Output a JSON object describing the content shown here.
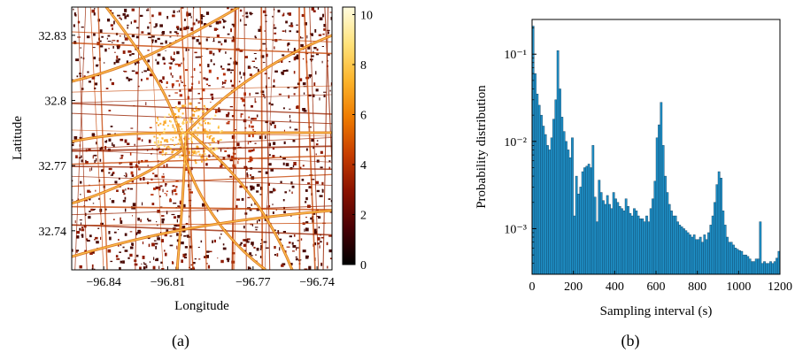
{
  "chart_data": [
    {
      "panel": "(a)",
      "type": "heatmap",
      "xlabel": "Longitude",
      "ylabel": "Latitude",
      "x_ticks": [
        -96.84,
        -96.81,
        -96.77,
        -96.74
      ],
      "x_tick_labels": [
        "−96.84",
        "−96.81",
        "−96.77",
        "−96.74"
      ],
      "y_ticks": [
        32.83,
        32.8,
        32.77,
        32.74
      ],
      "y_tick_labels": [
        "32.83",
        "32.8",
        "32.77",
        "32.74"
      ],
      "xlim": [
        -96.855,
        -96.733
      ],
      "ylim": [
        32.722,
        32.843
      ],
      "colorbar": {
        "range": [
          0,
          10.3
        ],
        "ticks": [
          0,
          2,
          4,
          6,
          8,
          10
        ],
        "tick_labels": [
          "0",
          "2",
          "4",
          "6",
          "8",
          "10"
        ],
        "colors": [
          "#000000",
          "#4a0004",
          "#8a1200",
          "#c73e00",
          "#ee7b00",
          "#fcb42b",
          "#ffe27a",
          "#fffcdf"
        ]
      }
    },
    {
      "panel": "(b)",
      "type": "bar",
      "xlabel": "Sampling interval (s)",
      "ylabel": "Probability distribution",
      "y_scale": "log",
      "xlim": [
        0,
        1200
      ],
      "ylim": [
        0.0003,
        0.25
      ],
      "x_ticks": [
        0,
        200,
        400,
        600,
        800,
        1000,
        1200
      ],
      "x_tick_labels": [
        "0",
        "200",
        "400",
        "600",
        "800",
        "1000",
        "1200"
      ],
      "y_ticks": [
        0.001,
        0.01,
        0.1
      ],
      "y_tick_labels": [
        "10⁻³",
        "10⁻²",
        "10⁻¹"
      ],
      "bin_width": 10,
      "bar_color": "#1f8fc6",
      "bins_start": [
        0,
        10,
        20,
        30,
        40,
        50,
        60,
        70,
        80,
        90,
        100,
        110,
        120,
        130,
        140,
        150,
        160,
        170,
        180,
        190,
        200,
        210,
        220,
        230,
        240,
        250,
        260,
        270,
        280,
        290,
        300,
        310,
        320,
        330,
        340,
        350,
        360,
        370,
        380,
        390,
        400,
        410,
        420,
        430,
        440,
        450,
        460,
        470,
        480,
        490,
        500,
        510,
        520,
        530,
        540,
        550,
        560,
        570,
        580,
        590,
        600,
        610,
        620,
        630,
        640,
        650,
        660,
        670,
        680,
        690,
        700,
        710,
        720,
        730,
        740,
        750,
        760,
        770,
        780,
        790,
        800,
        810,
        820,
        830,
        840,
        850,
        860,
        870,
        880,
        890,
        900,
        910,
        920,
        930,
        940,
        950,
        960,
        970,
        980,
        990,
        1000,
        1010,
        1020,
        1030,
        1040,
        1050,
        1060,
        1070,
        1080,
        1090,
        1100,
        1110,
        1120,
        1130,
        1140,
        1150,
        1160,
        1170,
        1180,
        1190
      ],
      "values": [
        0.21,
        0.06,
        0.035,
        0.026,
        0.02,
        0.015,
        0.012,
        0.009,
        0.008,
        0.011,
        0.018,
        0.03,
        0.11,
        0.04,
        0.019,
        0.013,
        0.01,
        0.008,
        0.0065,
        0.011,
        0.0014,
        0.004,
        0.0025,
        0.003,
        0.0045,
        0.005,
        0.0052,
        0.0055,
        0.005,
        0.009,
        0.0023,
        0.0012,
        0.0036,
        0.0026,
        0.0021,
        0.0019,
        0.0024,
        0.0019,
        0.0017,
        0.0026,
        0.0022,
        0.002,
        0.0018,
        0.0017,
        0.0016,
        0.0022,
        0.0018,
        0.0015,
        0.0014,
        0.0017,
        0.0016,
        0.0014,
        0.0013,
        0.0013,
        0.0012,
        0.0014,
        0.0012,
        0.0017,
        0.0022,
        0.0035,
        0.011,
        0.0155,
        0.028,
        0.009,
        0.004,
        0.0026,
        0.0019,
        0.0016,
        0.0014,
        0.0014,
        0.0012,
        0.0011,
        0.00105,
        0.001,
        0.00095,
        0.0009,
        0.00085,
        0.0008,
        0.00085,
        0.00075,
        0.00075,
        0.0008,
        0.0007,
        0.00085,
        0.00075,
        0.0009,
        0.0011,
        0.0014,
        0.002,
        0.0032,
        0.0045,
        0.0038,
        0.0016,
        0.0011,
        0.0008,
        0.0007,
        0.0007,
        0.00065,
        0.0006,
        0.00058,
        0.00056,
        0.00055,
        0.0005,
        0.0005,
        0.00048,
        0.00045,
        0.00042,
        0.00042,
        0.00045,
        0.00045,
        0.0012,
        0.0004,
        0.00042,
        0.0004,
        0.0004,
        0.00042,
        0.0004,
        0.00042,
        0.00046,
        0.00055
      ]
    }
  ],
  "captions": [
    "(a)",
    "(b)"
  ]
}
